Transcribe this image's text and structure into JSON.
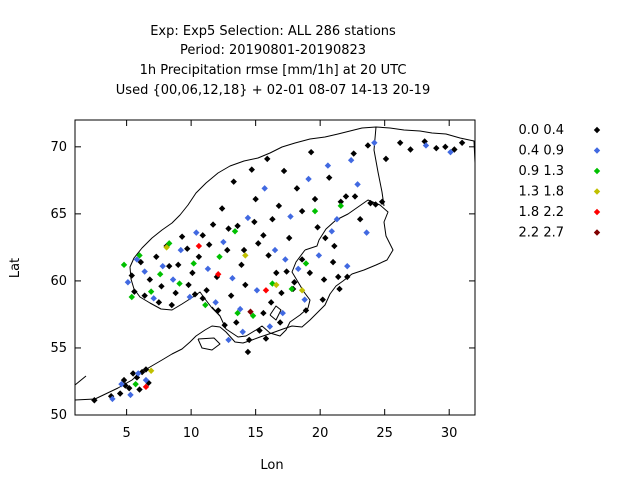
{
  "chart_data": {
    "type": "scatter",
    "title_lines": [
      "Exp: Exp5   Selection: ALL    286 stations",
      "Period: 20190801-20190823",
      "1h Precipitation rmse [mm/1h] at  20 UTC",
      "Used {00,06,12,18} + 02-01 08-07 14-13 20-19"
    ],
    "xlabel": "Lon",
    "ylabel": "Lat",
    "xlim": [
      1,
      32
    ],
    "ylim": [
      50,
      72
    ],
    "xticks": [
      5,
      10,
      15,
      20,
      25,
      30
    ],
    "yticks": [
      50,
      55,
      60,
      65,
      70
    ],
    "grid": false,
    "legend_position": "right",
    "marker": "diamond",
    "series": [
      {
        "name": "0.0 0.4",
        "color": "#000000",
        "points": [
          [
            2.5,
            51.1
          ],
          [
            3.8,
            51.4
          ],
          [
            4.5,
            51.6
          ],
          [
            4.9,
            52.2
          ],
          [
            5.2,
            52.0
          ],
          [
            5.8,
            52.8
          ],
          [
            6.2,
            53.2
          ],
          [
            6.7,
            52.4
          ],
          [
            6.5,
            53.4
          ],
          [
            5.5,
            53.1
          ],
          [
            4.8,
            52.6
          ],
          [
            6.0,
            51.9
          ],
          [
            5.4,
            60.4
          ],
          [
            5.6,
            59.2
          ],
          [
            6.1,
            61.4
          ],
          [
            6.8,
            60.1
          ],
          [
            7.3,
            61.8
          ],
          [
            7.5,
            58.4
          ],
          [
            8.1,
            62.6
          ],
          [
            8.8,
            59.1
          ],
          [
            9.3,
            63.3
          ],
          [
            9.0,
            61.2
          ],
          [
            9.8,
            59.7
          ],
          [
            10.1,
            60.6
          ],
          [
            10.6,
            61.8
          ],
          [
            10.9,
            63.4
          ],
          [
            11.2,
            59.3
          ],
          [
            11.7,
            64.2
          ],
          [
            12.0,
            60.3
          ],
          [
            12.4,
            65.4
          ],
          [
            12.8,
            62.3
          ],
          [
            13.1,
            58.9
          ],
          [
            13.3,
            67.4
          ],
          [
            13.6,
            64.1
          ],
          [
            13.9,
            61.2
          ],
          [
            14.2,
            59.7
          ],
          [
            14.7,
            68.3
          ],
          [
            15.0,
            66.1
          ],
          [
            15.2,
            62.8
          ],
          [
            15.6,
            57.6
          ],
          [
            15.9,
            69.1
          ],
          [
            16.3,
            64.6
          ],
          [
            16.6,
            60.6
          ],
          [
            16.9,
            56.9
          ],
          [
            17.2,
            68.2
          ],
          [
            17.6,
            63.2
          ],
          [
            17.9,
            59.4
          ],
          [
            18.2,
            66.9
          ],
          [
            18.6,
            61.6
          ],
          [
            18.9,
            57.8
          ],
          [
            19.3,
            69.6
          ],
          [
            19.8,
            64.0
          ],
          [
            20.2,
            58.6
          ],
          [
            20.7,
            67.7
          ],
          [
            21.1,
            62.6
          ],
          [
            21.4,
            60.3
          ],
          [
            22.0,
            66.3
          ],
          [
            22.6,
            69.5
          ],
          [
            23.1,
            64.6
          ],
          [
            23.7,
            70.1
          ],
          [
            24.3,
            65.7
          ],
          [
            25.1,
            69.1
          ],
          [
            26.2,
            70.3
          ],
          [
            27.0,
            69.8
          ],
          [
            28.1,
            70.4
          ],
          [
            29.0,
            69.9
          ],
          [
            29.7,
            70.0
          ],
          [
            30.4,
            69.8
          ],
          [
            31.0,
            70.3
          ],
          [
            8.5,
            58.2
          ],
          [
            10.3,
            59.0
          ],
          [
            12.1,
            57.8
          ],
          [
            13.5,
            56.9
          ],
          [
            14.5,
            55.6
          ],
          [
            15.3,
            56.3
          ],
          [
            16.2,
            58.4
          ],
          [
            17.0,
            59.1
          ],
          [
            18.0,
            59.9
          ],
          [
            17.4,
            60.7
          ],
          [
            16.0,
            61.9
          ],
          [
            15.6,
            63.4
          ],
          [
            14.9,
            64.4
          ],
          [
            16.8,
            65.6
          ],
          [
            18.6,
            65.2
          ],
          [
            19.6,
            66.1
          ],
          [
            21.6,
            65.9
          ],
          [
            22.7,
            66.3
          ],
          [
            23.9,
            65.8
          ],
          [
            24.8,
            65.9
          ],
          [
            20.4,
            63.2
          ],
          [
            21.0,
            61.4
          ],
          [
            19.2,
            60.6
          ],
          [
            20.3,
            60.1
          ],
          [
            21.5,
            59.4
          ],
          [
            22.1,
            60.3
          ],
          [
            12.9,
            63.9
          ],
          [
            11.4,
            62.7
          ],
          [
            14.1,
            62.3
          ],
          [
            9.7,
            62.4
          ],
          [
            8.3,
            61.1
          ],
          [
            7.7,
            59.6
          ],
          [
            6.4,
            58.9
          ],
          [
            10.9,
            58.7
          ],
          [
            12.6,
            56.7
          ],
          [
            14.4,
            54.7
          ],
          [
            15.8,
            55.7
          ]
        ]
      },
      {
        "name": "0.4 0.9",
        "color": "#4169e1",
        "points": [
          [
            3.9,
            51.2
          ],
          [
            4.6,
            52.3
          ],
          [
            5.3,
            51.5
          ],
          [
            5.9,
            53.1
          ],
          [
            6.5,
            52.6
          ],
          [
            5.1,
            59.9
          ],
          [
            5.8,
            61.6
          ],
          [
            6.4,
            60.7
          ],
          [
            7.1,
            58.7
          ],
          [
            7.8,
            61.1
          ],
          [
            8.6,
            60.1
          ],
          [
            9.2,
            62.3
          ],
          [
            9.9,
            58.8
          ],
          [
            10.4,
            63.6
          ],
          [
            11.3,
            60.9
          ],
          [
            11.9,
            58.4
          ],
          [
            12.5,
            62.9
          ],
          [
            13.2,
            60.2
          ],
          [
            13.8,
            57.9
          ],
          [
            14.4,
            64.7
          ],
          [
            15.1,
            59.3
          ],
          [
            15.7,
            66.9
          ],
          [
            16.5,
            62.3
          ],
          [
            17.1,
            57.6
          ],
          [
            17.7,
            64.8
          ],
          [
            18.3,
            60.9
          ],
          [
            19.1,
            67.6
          ],
          [
            19.9,
            61.9
          ],
          [
            20.6,
            68.6
          ],
          [
            21.3,
            64.6
          ],
          [
            22.1,
            61.1
          ],
          [
            22.9,
            67.2
          ],
          [
            23.6,
            63.6
          ],
          [
            24.2,
            70.3
          ],
          [
            28.2,
            70.1
          ],
          [
            30.1,
            69.6
          ],
          [
            14.0,
            56.2
          ],
          [
            12.9,
            55.6
          ],
          [
            16.1,
            56.6
          ],
          [
            18.8,
            58.6
          ],
          [
            17.3,
            61.6
          ],
          [
            20.9,
            63.7
          ],
          [
            22.4,
            69.0
          ]
        ]
      },
      {
        "name": "0.9 1.3",
        "color": "#00c000",
        "points": [
          [
            4.8,
            61.2
          ],
          [
            5.4,
            58.8
          ],
          [
            6.0,
            61.9
          ],
          [
            6.9,
            59.2
          ],
          [
            7.6,
            60.5
          ],
          [
            8.3,
            62.8
          ],
          [
            9.1,
            59.8
          ],
          [
            10.2,
            61.3
          ],
          [
            11.1,
            58.2
          ],
          [
            12.2,
            61.8
          ],
          [
            13.4,
            63.7
          ],
          [
            14.8,
            57.4
          ],
          [
            16.3,
            59.8
          ],
          [
            17.8,
            59.4
          ],
          [
            18.9,
            61.3
          ],
          [
            19.6,
            65.2
          ],
          [
            21.6,
            65.6
          ],
          [
            5.7,
            52.3
          ],
          [
            13.6,
            57.6
          ]
        ]
      },
      {
        "name": "1.3 1.8",
        "color": "#c0c000",
        "points": [
          [
            6.9,
            53.3
          ],
          [
            8.1,
            62.5
          ],
          [
            14.2,
            61.9
          ],
          [
            16.6,
            59.7
          ],
          [
            18.6,
            59.3
          ]
        ]
      },
      {
        "name": "1.8 2.2",
        "color": "#ff0000",
        "points": [
          [
            6.5,
            52.1
          ],
          [
            10.6,
            62.6
          ],
          [
            12.1,
            60.5
          ],
          [
            15.8,
            59.3
          ]
        ]
      },
      {
        "name": "2.2 2.7",
        "color": "#800000",
        "points": [
          [
            14.6,
            57.7
          ]
        ]
      }
    ]
  }
}
